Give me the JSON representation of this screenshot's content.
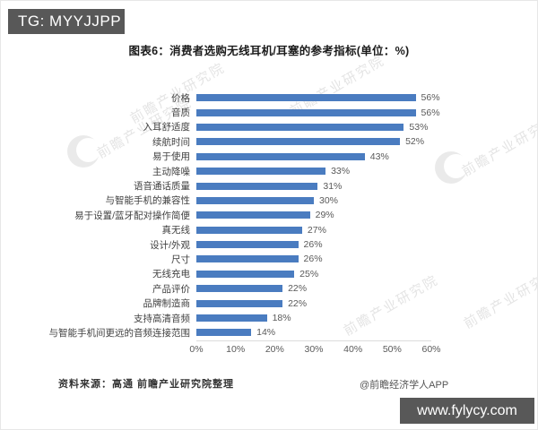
{
  "page": {
    "badge_top_left": "TG: MYYJJPP",
    "badge_bottom_right": "www.fylycy.com",
    "source_note": "资料来源：高通 前瞻产业研究院整理",
    "credit": "@前瞻经济学人APP",
    "watermark_text": "前瞻产业研究院"
  },
  "chart_data": {
    "type": "bar",
    "orientation": "horizontal",
    "title": "图表6：消费者选购无线耳机/耳塞的参考指标(单位：%)",
    "categories": [
      "价格",
      "音质",
      "入耳舒适度",
      "续航时间",
      "易于使用",
      "主动降噪",
      "语音通话质量",
      "与智能手机的兼容性",
      "易于设置/蓝牙配对操作简便",
      "真无线",
      "设计/外观",
      "尺寸",
      "无线充电",
      "产品评价",
      "品牌制造商",
      "支持高清音频",
      "与智能手机间更远的音频连接范围"
    ],
    "values": [
      56,
      56,
      53,
      52,
      43,
      33,
      31,
      30,
      29,
      27,
      26,
      26,
      25,
      22,
      22,
      18,
      14
    ],
    "value_suffix": "%",
    "xlabel": "",
    "ylabel": "",
    "xlim": [
      0,
      60
    ],
    "x_ticks": [
      "0%",
      "10%",
      "20%",
      "30%",
      "40%",
      "50%",
      "60%"
    ],
    "bar_color": "#4A7CC0",
    "grid": false,
    "legend": null
  }
}
